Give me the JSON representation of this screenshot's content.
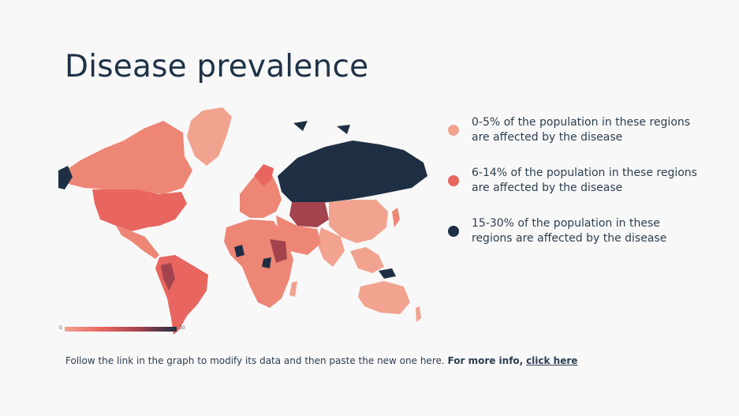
{
  "title": "Disease prevalence",
  "colors": {
    "background": "#f8f8f8",
    "title": "#1f3247",
    "low": "#f1a38f",
    "mid": "#e8665f",
    "high": "#1e2f44",
    "midDark": "#a3434d"
  },
  "legend": [
    {
      "label": "0-5% of the population in these regions are affected by the disease",
      "color": "#f1a38f"
    },
    {
      "label": "6-14% of the population in these regions are affected by the disease",
      "color": "#e8665f"
    },
    {
      "label": "15-30% of the population in these regions are affected by the disease",
      "color": "#1e2f44"
    }
  ],
  "colorbar": {
    "min": "0",
    "max": "30"
  },
  "footer": {
    "text": "Follow the link in the graph to modify its data and then paste the new one here.",
    "bold": "For more info,",
    "link": "click here"
  }
}
